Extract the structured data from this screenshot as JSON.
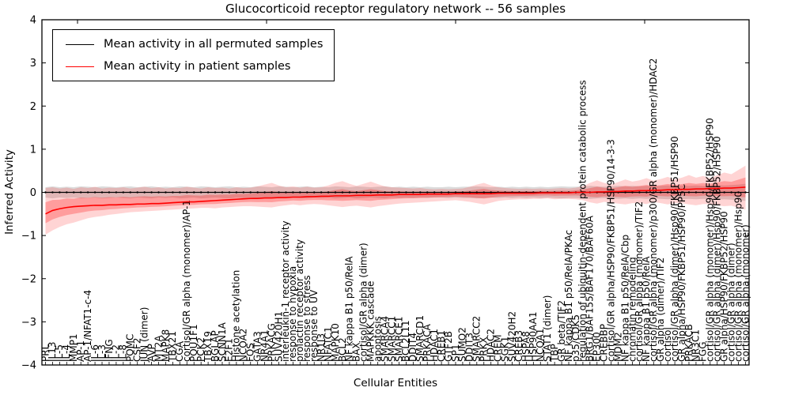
{
  "chart_data": {
    "type": "line",
    "title": "Glucocorticoid receptor regulatory network -- 56 samples",
    "xlabel": "Cellular Entities",
    "ylabel": "Inferred Activity",
    "ylim": [
      -4,
      4
    ],
    "yticks": [
      "4",
      "3",
      "2",
      "1",
      "0",
      "−1",
      "−2",
      "−3",
      "−4"
    ],
    "grid": false,
    "legend_position": "upper left",
    "x_tick_rotation_deg": 90,
    "inner_band_scale": 0.45,
    "colors": {
      "permuted_line": "#000000",
      "patient_line": "#ff0000",
      "permuted_band": "rgba(125,125,125,0.28)",
      "patient_band_outer": "rgba(255,0,0,0.17)",
      "patient_band_inner": "rgba(255,0,0,0.26)"
    },
    "categories": [
      "PRL",
      "IL13",
      "IL-5",
      "IL-4",
      "MMP1",
      "AP-1",
      "AP-1/NFAT1-c-4",
      "IL-6",
      "IL-3",
      "IFNG",
      "IL-2",
      "IL-8",
      "POMC",
      "CSF2",
      "JUN (dimer)",
      "AVP",
      "MT2A",
      "MAPK8",
      "TBX21",
      "CGA",
      "cortisol/GR alpha (monomer)/AP-1",
      "POU1F1",
      "PCK2",
      "TBX19",
      "BGLAP",
      "SCNN1A",
      "E2F1",
      "Histone acetylation",
      "NCOA2",
      "FOS",
      "GATA3",
      "NR4A1",
      "PRKACG",
      "SUV420H1",
      "interleukin-1 receptor activity",
      "response to hypoxia",
      "prolactin receptor activity",
      "response to stress",
      "response to UV",
      "NR1I3",
      "NFATC1",
      "MAPK10",
      "BCL2",
      "NF kappa B1 p50/RelA",
      "BAX",
      "cortisol/GR alpha (dimer)",
      "MAPKKK cascade",
      "apoptosis",
      "SMARCA4",
      "SMARCC1",
      "SMARCE1",
      "BCL2L11",
      "DDIT4",
      "SMARCD1",
      "PRKACA",
      "HDAC1",
      "CREB1",
      "GTF2B",
      "SP1",
      "SUMO2",
      "DDIT3",
      "SMARCC2",
      "PRKX",
      "HDAC2",
      "CREM",
      "SGK1",
      "SUV420H2",
      "CREB3",
      "HSPA8",
      "HSP90AA1",
      "NCOA1",
      "STAT1 (dimer)",
      "TBP",
      "GR beta/TIF2",
      "NF kappa B1 p50/RelA/PKAc",
      "p35/CDK5",
      "regulation of ubiquitin-dependent protein catabolic process",
      "BRG1/BAF155/BAF170/BAF60A",
      "EP300",
      "CREBBP",
      "cortisol/GR alpha/HSP90/FKBP51/HSP90/14-3-3",
      "MDM2",
      "NF kappa B1 p50/RelA/Cbp",
      "chromatin remodeling",
      "cortisol/GR alpha (monomer)/TIF2",
      "NF kappa B1 p50/RelA",
      "cortisol/GR alpha (monomer)/p300/GR alpha (monomer)/HDAC2",
      "GR alpha (dimer)/TIF2",
      "cortisol",
      "cortisol/GR alpha (dimer)/Hsp90/FKBP51/HSP90",
      "GR alpha/HSP90/FKBP51/HSP90/PP5C",
      "PRKACB",
      "NR3C1",
      "FGG",
      "cortisol/GR alpha (monomer)/Hsp90/FKBP52/HSP90",
      "cortisol/GR alpha (dimer)/Hsp90/FKBP52/HSP90",
      "GR alpha/HSP90/FKBP52/HSP90",
      "cortisol/GR alpha (dimer)",
      "cortisol/GR alpha (monomer)/Hsp90",
      "cortisol/GR alpha (monomer)"
    ],
    "series": [
      {
        "name": "Mean activity in all permuted samples",
        "color": "#000000",
        "marker": "dot",
        "values_constant": 0.0,
        "band_half": [
          0.12,
          0.14,
          0.12,
          0.13,
          0.12,
          0.14,
          0.13,
          0.12,
          0.14,
          0.13,
          0.12,
          0.13,
          0.14,
          0.12,
          0.13,
          0.14,
          0.12,
          0.13,
          0.12,
          0.14,
          0.13,
          0.12,
          0.14,
          0.13,
          0.12,
          0.13,
          0.14,
          0.12,
          0.13,
          0.12,
          0.14,
          0.13,
          0.12,
          0.14,
          0.13,
          0.12,
          0.13,
          0.14,
          0.12,
          0.13,
          0.12,
          0.14,
          0.13,
          0.12,
          0.14,
          0.13,
          0.12,
          0.13,
          0.14,
          0.12,
          0.13,
          0.12,
          0.13,
          0.12,
          0.13,
          0.12,
          0.12,
          0.13,
          0.12,
          0.13,
          0.13,
          0.14,
          0.13,
          0.12,
          0.13,
          0.12,
          0.13,
          0.12,
          0.13,
          0.12,
          0.13,
          0.12,
          0.13,
          0.14,
          0.13,
          0.13,
          0.14,
          0.15,
          0.14,
          0.13,
          0.14,
          0.15,
          0.14,
          0.15,
          0.14,
          0.15,
          0.14,
          0.15,
          0.16,
          0.15,
          0.16,
          0.15,
          0.16,
          0.15,
          0.16,
          0.17,
          0.16,
          0.17,
          0.18,
          0.2
        ]
      },
      {
        "name": "Mean activity in patient samples",
        "color": "#ff0000",
        "values": [
          -0.5,
          -0.42,
          -0.38,
          -0.35,
          -0.33,
          -0.32,
          -0.31,
          -0.3,
          -0.3,
          -0.29,
          -0.29,
          -0.28,
          -0.28,
          -0.27,
          -0.27,
          -0.26,
          -0.26,
          -0.25,
          -0.24,
          -0.23,
          -0.22,
          -0.22,
          -0.21,
          -0.2,
          -0.19,
          -0.18,
          -0.17,
          -0.16,
          -0.15,
          -0.14,
          -0.14,
          -0.13,
          -0.13,
          -0.12,
          -0.12,
          -0.11,
          -0.11,
          -0.1,
          -0.1,
          -0.09,
          -0.09,
          -0.08,
          -0.08,
          -0.08,
          -0.07,
          -0.07,
          -0.07,
          -0.06,
          -0.06,
          -0.06,
          -0.05,
          -0.05,
          -0.05,
          -0.05,
          -0.04,
          -0.04,
          -0.04,
          -0.04,
          -0.03,
          -0.03,
          -0.03,
          -0.03,
          -0.03,
          -0.03,
          -0.02,
          -0.02,
          -0.02,
          -0.02,
          -0.02,
          -0.02,
          -0.01,
          -0.01,
          -0.01,
          -0.01,
          -0.01,
          0.0,
          0.0,
          0.0,
          0.01,
          0.01,
          0.02,
          0.02,
          0.03,
          0.03,
          0.04,
          0.04,
          0.05,
          0.05,
          0.06,
          0.06,
          0.07,
          0.07,
          0.08,
          0.08,
          0.09,
          0.09,
          0.1,
          0.1,
          0.11,
          0.12
        ],
        "band_hi": [
          0.1,
          0.12,
          0.09,
          0.11,
          0.08,
          0.12,
          0.1,
          0.13,
          0.09,
          0.11,
          0.1,
          0.12,
          0.09,
          0.11,
          0.13,
          0.1,
          0.12,
          0.09,
          0.11,
          0.1,
          0.13,
          0.11,
          0.09,
          0.12,
          0.1,
          0.11,
          0.09,
          0.12,
          0.1,
          0.11,
          0.14,
          0.18,
          0.22,
          0.16,
          0.12,
          0.14,
          0.11,
          0.13,
          0.11,
          0.12,
          0.16,
          0.22,
          0.26,
          0.2,
          0.15,
          0.2,
          0.25,
          0.19,
          0.14,
          0.12,
          0.11,
          0.1,
          0.09,
          0.1,
          0.08,
          0.07,
          0.08,
          0.07,
          0.08,
          0.09,
          0.13,
          0.18,
          0.22,
          0.16,
          0.12,
          0.1,
          0.09,
          0.08,
          0.09,
          0.08,
          0.09,
          0.08,
          0.09,
          0.1,
          0.09,
          0.11,
          0.14,
          0.22,
          0.28,
          0.22,
          0.18,
          0.24,
          0.3,
          0.25,
          0.28,
          0.33,
          0.27,
          0.31,
          0.36,
          0.3,
          0.34,
          0.4,
          0.34,
          0.38,
          0.33,
          0.4,
          0.46,
          0.42,
          0.52,
          0.62
        ],
        "band_lo": [
          -0.98,
          -0.88,
          -0.8,
          -0.74,
          -0.7,
          -0.65,
          -0.6,
          -0.57,
          -0.55,
          -0.52,
          -0.5,
          -0.48,
          -0.46,
          -0.45,
          -0.44,
          -0.43,
          -0.42,
          -0.41,
          -0.4,
          -0.39,
          -0.38,
          -0.37,
          -0.36,
          -0.36,
          -0.37,
          -0.35,
          -0.34,
          -0.33,
          -0.32,
          -0.32,
          -0.33,
          -0.34,
          -0.35,
          -0.32,
          -0.3,
          -0.28,
          -0.3,
          -0.28,
          -0.27,
          -0.28,
          -0.3,
          -0.32,
          -0.34,
          -0.32,
          -0.31,
          -0.33,
          -0.35,
          -0.32,
          -0.3,
          -0.28,
          -0.26,
          -0.25,
          -0.24,
          -0.23,
          -0.22,
          -0.21,
          -0.2,
          -0.19,
          -0.18,
          -0.2,
          -0.22,
          -0.25,
          -0.28,
          -0.24,
          -0.2,
          -0.18,
          -0.17,
          -0.16,
          -0.16,
          -0.15,
          -0.15,
          -0.14,
          -0.16,
          -0.15,
          -0.15,
          -0.16,
          -0.18,
          -0.23,
          -0.26,
          -0.22,
          -0.24,
          -0.26,
          -0.28,
          -0.25,
          -0.25,
          -0.27,
          -0.22,
          -0.25,
          -0.28,
          -0.25,
          -0.25,
          -0.28,
          -0.3,
          -0.27,
          -0.27,
          -0.3,
          -0.32,
          -0.31,
          -0.36,
          -0.4
        ]
      }
    ]
  }
}
